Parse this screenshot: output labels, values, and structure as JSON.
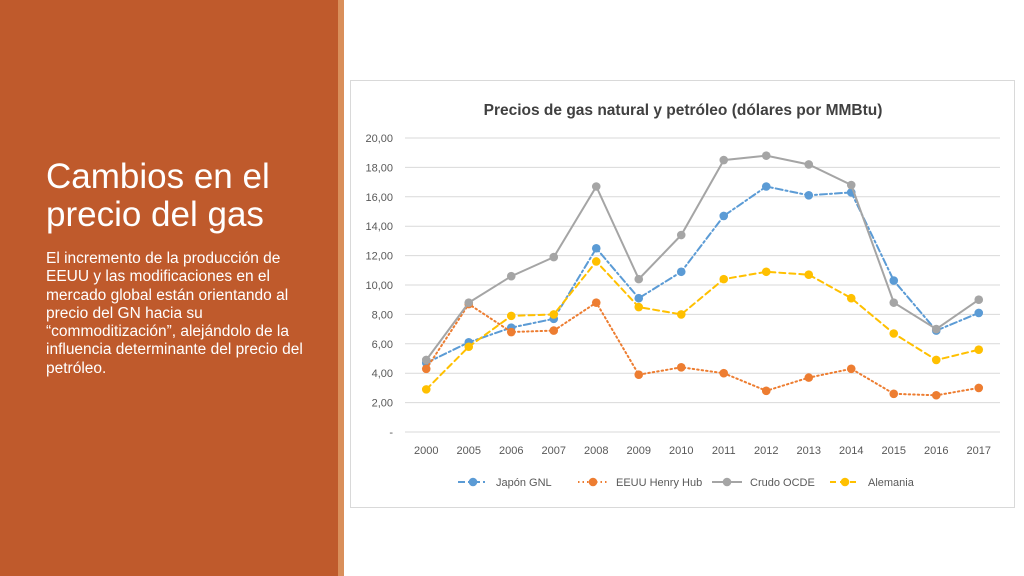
{
  "slide": {
    "title": "Cambios en el precio del gas",
    "body": "El incremento de la producción de EEUU y las modificaciones en el mercado global están orientando al precio del GN hacia su “commoditización”, alejándolo de la influencia determinante del precio del petróleo."
  },
  "colors": {
    "panel": "#bf5a2c",
    "japon": "#5b9bd5",
    "henry": "#ed7d31",
    "crudo": "#a5a5a5",
    "alemania": "#ffc000"
  },
  "chart_data": {
    "type": "line",
    "title": "Precios de gas natural y petróleo (dólares por MMBtu)",
    "xlabel": "",
    "ylabel": "",
    "categories": [
      "2000",
      "2005",
      "2006",
      "2007",
      "2008",
      "2009",
      "2010",
      "2011",
      "2012",
      "2013",
      "2014",
      "2015",
      "2016",
      "2017"
    ],
    "yticks": [
      "-",
      "2,00",
      "4,00",
      "6,00",
      "8,00",
      "10,00",
      "12,00",
      "14,00",
      "16,00",
      "18,00",
      "20,00"
    ],
    "ylim": [
      0,
      20
    ],
    "grid": true,
    "legend": "bottom",
    "series": [
      {
        "name": "Japón GNL",
        "style": "dash-dot",
        "color": "#5b9bd5",
        "values": [
          4.7,
          6.1,
          7.1,
          7.7,
          12.5,
          9.1,
          10.9,
          14.7,
          16.7,
          16.1,
          16.3,
          10.3,
          6.9,
          8.1
        ]
      },
      {
        "name": "EEUU Henry Hub",
        "style": "dotted",
        "color": "#ed7d31",
        "values": [
          4.3,
          8.7,
          6.8,
          6.9,
          8.8,
          3.9,
          4.4,
          4.0,
          2.8,
          3.7,
          4.3,
          2.6,
          2.5,
          3.0
        ]
      },
      {
        "name": "Crudo OCDE",
        "style": "solid",
        "color": "#a5a5a5",
        "values": [
          4.9,
          8.8,
          10.6,
          11.9,
          16.7,
          10.4,
          13.4,
          18.5,
          18.8,
          18.2,
          16.8,
          8.8,
          7.0,
          9.0
        ]
      },
      {
        "name": "Alemania",
        "style": "dashed",
        "color": "#ffc000",
        "values": [
          2.9,
          5.8,
          7.9,
          8.0,
          11.6,
          8.5,
          8.0,
          10.4,
          10.9,
          10.7,
          9.1,
          6.7,
          4.9,
          5.6
        ]
      }
    ]
  }
}
